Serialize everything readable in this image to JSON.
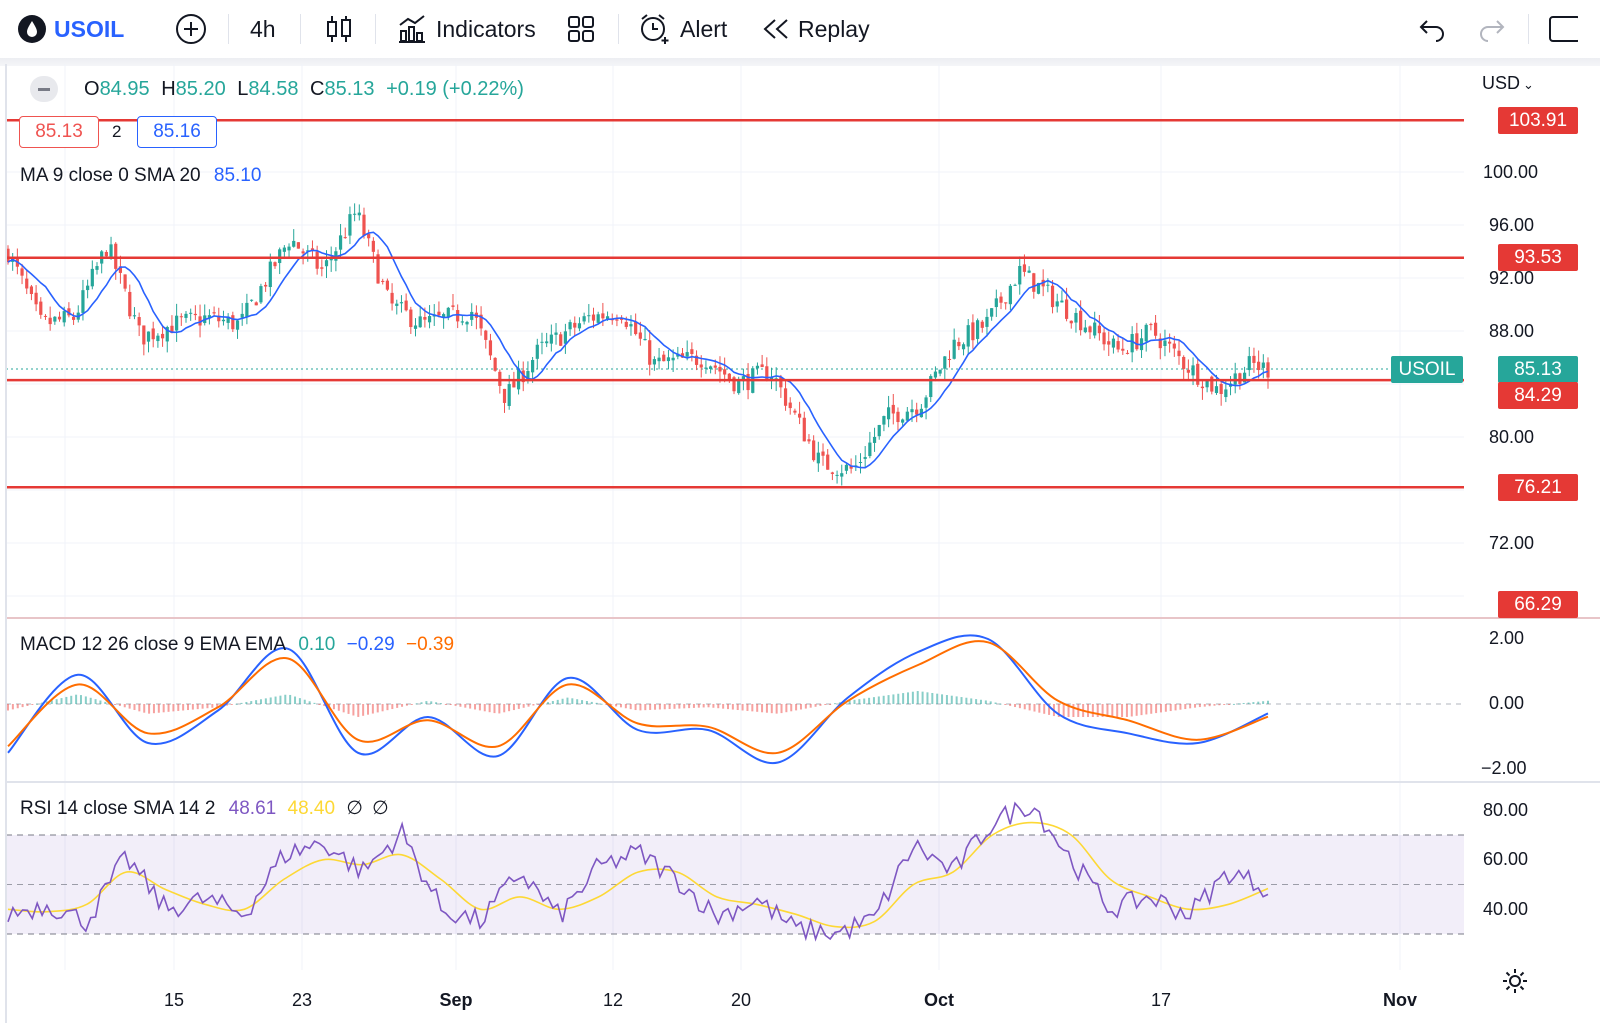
{
  "toolbar": {
    "symbol": "USOIL",
    "interval": "4h",
    "indicators": "Indicators",
    "alert": "Alert",
    "replay": "Replay"
  },
  "ohlc": {
    "o_label": "O",
    "o": "84.95",
    "h_label": "H",
    "h": "85.20",
    "l_label": "L",
    "l": "84.58",
    "c_label": "C",
    "c": "85.13",
    "change": "+0.19 (+0.22%)"
  },
  "trade": {
    "sell": "85.13",
    "spread": "2",
    "buy": "85.16"
  },
  "ma_legend": {
    "label": "MA 9 close 0 SMA 20",
    "value": "85.10"
  },
  "macd_legend": {
    "label": "MACD 12 26 close 9 EMA EMA",
    "hist": "0.10",
    "macd": "−0.29",
    "signal": "−0.39"
  },
  "rsi_legend": {
    "label": "RSI 14 close SMA 14 2",
    "rsi": "48.61",
    "sma": "48.40",
    "n1": "∅",
    "n2": "∅"
  },
  "currency": "USD",
  "price_axis": [
    "100.00",
    "96.00",
    "92.00",
    "88.00",
    "80.00",
    "72.00"
  ],
  "price_tags": {
    "l1": "103.91",
    "l2": "93.53",
    "symbol": "USOIL",
    "last": "85.13",
    "l3": "84.29",
    "l4": "76.21",
    "l5": "66.29"
  },
  "macd_axis": [
    "2.00",
    "0.00",
    "−2.00"
  ],
  "rsi_axis": [
    "80.00",
    "60.00",
    "40.00"
  ],
  "time_axis": [
    "15",
    "23",
    "Sep",
    "12",
    "20",
    "Oct",
    "17",
    "Nov"
  ],
  "colors": {
    "up": "#26a69a",
    "down": "#ef5350",
    "level_line": "#e53935",
    "ma": "#2962ff",
    "macd_signal": "#ff6d00",
    "rsi": "#7e57c2",
    "rsi_sma": "#fdd835",
    "accent": "#2962ff"
  },
  "chart_data": {
    "type": "candlestick",
    "interval": "4h",
    "currency": "USD",
    "price_ylim": [
      66,
      106
    ],
    "levels": [
      103.91,
      93.53,
      84.29,
      76.21
    ],
    "last_price": 85.13,
    "close_path": [
      {
        "x": "Aug 8",
        "y": 94.0
      },
      {
        "x": "Aug 10",
        "y": 88.5
      },
      {
        "x": "Aug 12",
        "y": 89.0
      },
      {
        "x": "Aug 14",
        "y": 94.5
      },
      {
        "x": "Aug 16",
        "y": 87.5
      },
      {
        "x": "Aug 18",
        "y": 88.5
      },
      {
        "x": "Aug 20",
        "y": 89.0
      },
      {
        "x": "Aug 22",
        "y": 88.5
      },
      {
        "x": "Aug 25",
        "y": 95.0
      },
      {
        "x": "Aug 27",
        "y": 92.5
      },
      {
        "x": "Aug 29",
        "y": 97.0
      },
      {
        "x": "Aug 31",
        "y": 90.0
      },
      {
        "x": "Sep 2",
        "y": 88.5
      },
      {
        "x": "Sep 5",
        "y": 89.5
      },
      {
        "x": "Sep 7",
        "y": 83.0
      },
      {
        "x": "Sep 9",
        "y": 86.5
      },
      {
        "x": "Sep 12",
        "y": 89.0
      },
      {
        "x": "Sep 14",
        "y": 89.5
      },
      {
        "x": "Sep 16",
        "y": 85.5
      },
      {
        "x": "Sep 19",
        "y": 86.0
      },
      {
        "x": "Sep 21",
        "y": 84.0
      },
      {
        "x": "Sep 23",
        "y": 85.0
      },
      {
        "x": "Sep 26",
        "y": 78.0
      },
      {
        "x": "Sep 28",
        "y": 77.5
      },
      {
        "x": "Sep 30",
        "y": 81.5
      },
      {
        "x": "Oct 2",
        "y": 82.5
      },
      {
        "x": "Oct 4",
        "y": 87.0
      },
      {
        "x": "Oct 6",
        "y": 88.5
      },
      {
        "x": "Oct 8",
        "y": 92.5
      },
      {
        "x": "Oct 10",
        "y": 90.5
      },
      {
        "x": "Oct 12",
        "y": 88.5
      },
      {
        "x": "Oct 14",
        "y": 86.5
      },
      {
        "x": "Oct 16",
        "y": 88.0
      },
      {
        "x": "Oct 18",
        "y": 85.5
      },
      {
        "x": "Oct 20",
        "y": 83.5
      },
      {
        "x": "Oct 22",
        "y": 85.5
      },
      {
        "x": "Oct 23",
        "y": 85.13
      }
    ],
    "macd": {
      "values": [
        -1.5,
        0.9,
        -1.2,
        -0.2,
        1.7,
        -1.5,
        -0.4,
        -1.6,
        0.8,
        -0.8,
        -0.8,
        -1.8,
        0.2,
        1.6,
        2.0,
        -0.3,
        -0.9,
        -1.2,
        -0.29
      ],
      "signal": [
        -1.3,
        0.6,
        -0.9,
        -0.1,
        1.4,
        -1.1,
        -0.5,
        -1.3,
        0.6,
        -0.6,
        -0.7,
        -1.5,
        0.1,
        1.2,
        1.9,
        0.1,
        -0.5,
        -1.1,
        -0.39
      ]
    },
    "rsi": {
      "values": [
        38,
        42,
        35,
        61,
        40,
        44,
        38,
        62,
        67,
        55,
        71,
        40,
        35,
        55,
        37,
        57,
        63,
        52,
        37,
        44,
        32,
        30,
        36,
        66,
        55,
        75,
        83,
        60,
        40,
        45,
        38,
        55,
        48.61
      ],
      "sma": [
        40,
        39,
        42,
        55,
        48,
        42,
        40,
        52,
        60,
        58,
        62,
        52,
        40,
        45,
        40,
        45,
        55,
        55,
        45,
        42,
        38,
        33,
        35,
        50,
        55,
        70,
        75,
        70,
        52,
        45,
        40,
        42,
        48.4
      ],
      "band": [
        30,
        70
      ]
    }
  }
}
